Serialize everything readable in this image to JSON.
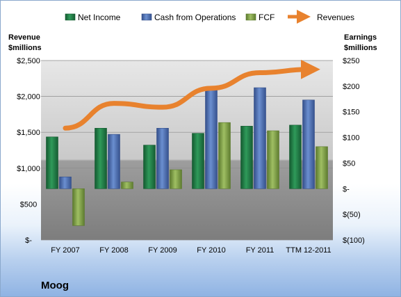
{
  "company": "Moog",
  "chart_data": {
    "type": "bar",
    "categories": [
      "FY 2007",
      "FY 2008",
      "FY 2009",
      "FY 2010",
      "FY 2011",
      "TTM 12-2011"
    ],
    "series": [
      {
        "name": "Net Income",
        "axis": "right",
        "values": [
          101,
          118,
          85,
          108,
          122,
          124
        ],
        "color": "#217a45"
      },
      {
        "name": "Cash from Operations",
        "axis": "right",
        "values": [
          23,
          106,
          118,
          197,
          197,
          173
        ],
        "color": "#4d6fb3"
      },
      {
        "name": "FCF",
        "axis": "right",
        "values": [
          -72,
          13,
          37,
          129,
          113,
          82
        ],
        "color": "#7fa04a"
      },
      {
        "name": "Revenues",
        "axis": "left",
        "type": "line",
        "values": [
          1558,
          1903,
          1849,
          2114,
          2330,
          2376
        ],
        "color": "#e8822e"
      }
    ],
    "left_axis": {
      "title_line1": "Revenue",
      "title_line2": "$millions",
      "min": 0,
      "max": 2500,
      "ticks": [
        0,
        500,
        1000,
        1500,
        2000,
        2500
      ],
      "tick_labels": [
        "$-",
        "$500",
        "$1,000",
        "$1,500",
        "$2,000",
        "$2,500"
      ]
    },
    "right_axis": {
      "title_line1": "Earnings",
      "title_line2": "$millions",
      "min": -100,
      "max": 250,
      "ticks": [
        -100,
        -50,
        0,
        50,
        100,
        150,
        200,
        250
      ],
      "tick_labels": [
        "$(100)",
        "$(50)",
        "$-",
        "$50",
        "$100",
        "$150",
        "$200",
        "$250"
      ]
    },
    "legend": {
      "position": "top",
      "items": [
        "Net Income",
        "Cash from Operations",
        "FCF",
        "Revenues"
      ]
    },
    "grid": true
  }
}
